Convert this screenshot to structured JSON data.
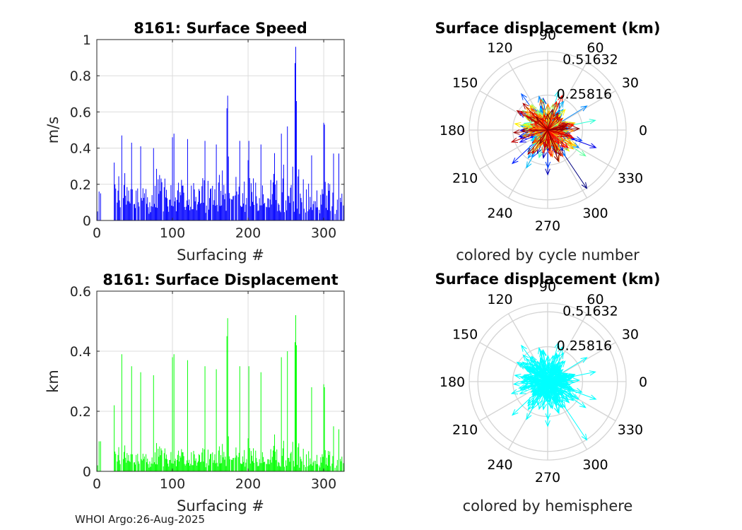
{
  "footer": "WHOI Argo:26-Aug-2025",
  "colors": {
    "speed": "#0000ff",
    "displacement": "#00ff00",
    "hemisphere": "#00ffff",
    "grid": "#dcdcdc",
    "polar_grid": "#d4d4d4",
    "text": "#262626"
  },
  "chart_data": [
    {
      "id": "speed",
      "type": "bar",
      "title": "8161: Surface Speed",
      "xlabel": "Surfacing #",
      "ylabel": "m/s",
      "xlim": [
        0,
        327
      ],
      "ylim": [
        0,
        1
      ],
      "xticks": [
        "0",
        "100",
        "200",
        "300"
      ],
      "xtick_values": [
        0,
        100,
        200,
        300
      ],
      "yticks": [
        "0",
        "0.2",
        "0.4",
        "0.6",
        "0.8",
        "1"
      ],
      "ytick_values": [
        0,
        0.2,
        0.4,
        0.6,
        0.8,
        1
      ],
      "peaks": [
        [
          1,
          0.05
        ],
        [
          3,
          0.16
        ],
        [
          5,
          0.15
        ],
        [
          23,
          0.32
        ],
        [
          33,
          0.47
        ],
        [
          46,
          0.43
        ],
        [
          58,
          0.41
        ],
        [
          75,
          0.4
        ],
        [
          100,
          0.46
        ],
        [
          102,
          0.48
        ],
        [
          120,
          0.45
        ],
        [
          143,
          0.44
        ],
        [
          158,
          0.42
        ],
        [
          172,
          0.62
        ],
        [
          173,
          0.69
        ],
        [
          189,
          0.44
        ],
        [
          201,
          0.44
        ],
        [
          217,
          0.42
        ],
        [
          244,
          0.48
        ],
        [
          252,
          0.52
        ],
        [
          262,
          0.87
        ],
        [
          263,
          0.96
        ],
        [
          264,
          0.66
        ],
        [
          284,
          0.36
        ],
        [
          300,
          0.54
        ],
        [
          301,
          0.53
        ],
        [
          313,
          0.37
        ],
        [
          320,
          0.37
        ]
      ],
      "series_color": "#0000ff"
    },
    {
      "id": "displacement",
      "type": "bar",
      "title": "8161: Surface Displacement",
      "xlabel": "Surfacing #",
      "ylabel": "km",
      "xlim": [
        0,
        327
      ],
      "ylim": [
        0,
        0.6
      ],
      "xticks": [
        "0",
        "100",
        "200",
        "300"
      ],
      "xtick_values": [
        0,
        100,
        200,
        300
      ],
      "yticks": [
        "0",
        "0.2",
        "0.4",
        "0.6"
      ],
      "ytick_values": [
        0,
        0.2,
        0.4,
        0.6
      ],
      "peaks": [
        [
          1,
          0.02
        ],
        [
          3,
          0.1
        ],
        [
          5,
          0.1
        ],
        [
          23,
          0.22
        ],
        [
          33,
          0.39
        ],
        [
          46,
          0.35
        ],
        [
          58,
          0.33
        ],
        [
          75,
          0.32
        ],
        [
          100,
          0.38
        ],
        [
          102,
          0.39
        ],
        [
          120,
          0.37
        ],
        [
          143,
          0.35
        ],
        [
          158,
          0.34
        ],
        [
          172,
          0.45
        ],
        [
          173,
          0.51
        ],
        [
          189,
          0.35
        ],
        [
          201,
          0.35
        ],
        [
          217,
          0.33
        ],
        [
          244,
          0.38
        ],
        [
          252,
          0.4
        ],
        [
          262,
          0.43
        ],
        [
          263,
          0.52
        ],
        [
          264,
          0.42
        ],
        [
          284,
          0.28
        ],
        [
          300,
          0.29
        ],
        [
          301,
          0.28
        ],
        [
          313,
          0.15
        ],
        [
          320,
          0.14
        ]
      ],
      "series_color": "#00ff00"
    },
    {
      "id": "polar-cycle",
      "type": "polar-vector",
      "title": "Surface displacement (km)",
      "caption": "colored by cycle number",
      "r_ticks": [
        "0.25816",
        "0.51632"
      ],
      "r_tick_values": [
        0.25816,
        0.51632
      ],
      "r_max": 0.58,
      "angle_ticks": [
        "0",
        "30",
        "60",
        "90",
        "120",
        "150",
        "180",
        "210",
        "240",
        "270",
        "300",
        "330"
      ],
      "color_mode": "cycle",
      "vector_count": 327
    },
    {
      "id": "polar-hemisphere",
      "type": "polar-vector",
      "title": "Surface displacement (km)",
      "caption": "colored by hemisphere",
      "r_ticks": [
        "0.25816",
        "0.51632"
      ],
      "r_tick_values": [
        0.25816,
        0.51632
      ],
      "r_max": 0.58,
      "angle_ticks": [
        "0",
        "30",
        "60",
        "90",
        "120",
        "150",
        "180",
        "210",
        "240",
        "270",
        "300",
        "330"
      ],
      "color_mode": "hemisphere",
      "vector_count": 327
    }
  ]
}
